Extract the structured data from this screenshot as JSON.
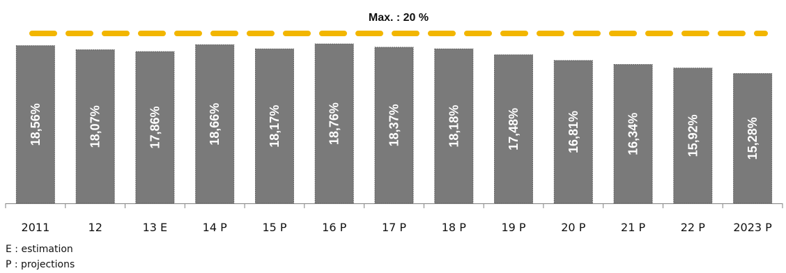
{
  "chart_data": {
    "type": "bar",
    "categories": [
      "2011",
      "12",
      "13 E",
      "14 P",
      "15 P",
      "16 P",
      "17 P",
      "18 P",
      "19 P",
      "20 P",
      "21 P",
      "22 P",
      "2023 P"
    ],
    "values": [
      18.56,
      18.07,
      17.86,
      18.66,
      18.17,
      18.76,
      18.37,
      18.18,
      17.48,
      16.81,
      16.34,
      15.92,
      15.28
    ],
    "data_labels": [
      "18,56%",
      "18,07%",
      "17,86%",
      "18,66%",
      "18,17%",
      "18,76%",
      "18,37%",
      "18,18%",
      "17,48%",
      "16,81%",
      "16,34%",
      "15,92%",
      "15,28%"
    ],
    "ylim": [
      0,
      20.9
    ],
    "reference_line": {
      "value": 20,
      "label": "Max. : 20 %",
      "style": "dashed",
      "color": "#f2b600"
    },
    "bar_color": "#7a7a7a",
    "label_color": "#ffffff",
    "title": "",
    "xlabel": "",
    "ylabel": "",
    "grid": false,
    "legend": "none"
  },
  "notes": [
    "E : estimation",
    "P : projections"
  ]
}
